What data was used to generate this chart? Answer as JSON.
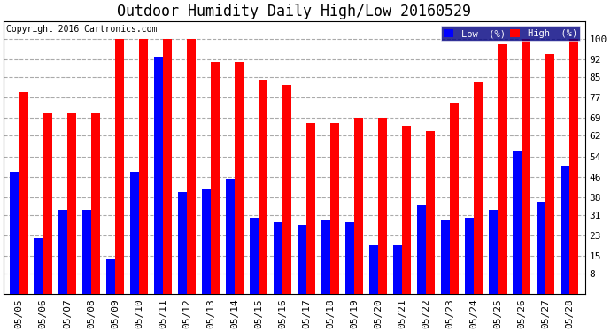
{
  "title": "Outdoor Humidity Daily High/Low 20160529",
  "copyright": "Copyright 2016 Cartronics.com",
  "dates": [
    "05/05",
    "05/06",
    "05/07",
    "05/08",
    "05/09",
    "05/10",
    "05/11",
    "05/12",
    "05/13",
    "05/14",
    "05/15",
    "05/16",
    "05/17",
    "05/18",
    "05/19",
    "05/20",
    "05/21",
    "05/22",
    "05/23",
    "05/24",
    "05/25",
    "05/26",
    "05/27",
    "05/28"
  ],
  "high": [
    79,
    71,
    71,
    71,
    100,
    100,
    100,
    100,
    91,
    91,
    84,
    82,
    67,
    67,
    69,
    69,
    66,
    64,
    75,
    83,
    98,
    100,
    94,
    100
  ],
  "low": [
    48,
    22,
    33,
    33,
    14,
    48,
    93,
    40,
    41,
    45,
    30,
    28,
    27,
    29,
    28,
    19,
    19,
    35,
    29,
    30,
    33,
    56,
    36,
    50
  ],
  "high_color": "#ff0000",
  "low_color": "#0000ff",
  "bg_color": "#ffffff",
  "grid_color": "#aaaaaa",
  "yticks": [
    8,
    15,
    23,
    31,
    38,
    46,
    54,
    62,
    69,
    77,
    85,
    92,
    100
  ],
  "ylim": [
    0,
    107
  ],
  "bar_width": 0.38,
  "title_fontsize": 12,
  "tick_fontsize": 8,
  "legend_fontsize": 8
}
